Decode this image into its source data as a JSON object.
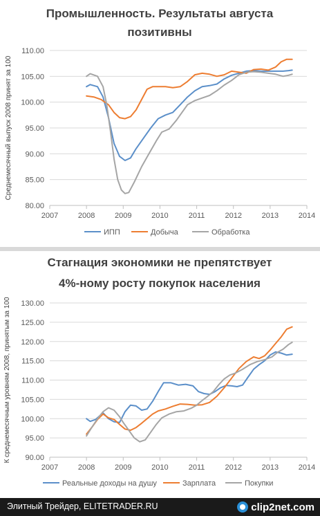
{
  "chart_data": [
    {
      "type": "line",
      "title": "Промышленность. Результаты августа позитивны",
      "title_lines": [
        "Промышленность. Результаты августа",
        "позитивны"
      ],
      "xlabel": "",
      "ylabel": "Среднемесячный выпуск 2008 принят за 100",
      "xlim": [
        2007,
        2014
      ],
      "ylim": [
        80,
        110
      ],
      "x_ticks": [
        "2007",
        "2008",
        "2009",
        "2010",
        "2011",
        "2012",
        "2013",
        "2014"
      ],
      "y_ticks": [
        "80.00",
        "85.00",
        "90.00",
        "95.00",
        "100.00",
        "105.00",
        "110.00"
      ],
      "grid": "horizontal",
      "legend_position": "bottom",
      "series": [
        {
          "name": "ИПП",
          "color": "#5b8fc9",
          "points": [
            [
              2008.0,
              103.0
            ],
            [
              2008.1,
              103.4
            ],
            [
              2008.3,
              103.0
            ],
            [
              2008.45,
              101.0
            ],
            [
              2008.6,
              97.0
            ],
            [
              2008.75,
              92.0
            ],
            [
              2008.9,
              89.5
            ],
            [
              2009.05,
              88.7
            ],
            [
              2009.2,
              89.2
            ],
            [
              2009.35,
              91.0
            ],
            [
              2009.55,
              93.0
            ],
            [
              2009.75,
              95.0
            ],
            [
              2009.95,
              96.8
            ],
            [
              2010.15,
              97.5
            ],
            [
              2010.35,
              98.0
            ],
            [
              2010.55,
              99.5
            ],
            [
              2010.75,
              101.0
            ],
            [
              2010.95,
              102.2
            ],
            [
              2011.15,
              103.0
            ],
            [
              2011.35,
              103.2
            ],
            [
              2011.55,
              103.5
            ],
            [
              2011.75,
              104.5
            ],
            [
              2011.95,
              105.2
            ],
            [
              2012.15,
              105.6
            ],
            [
              2012.35,
              106.0
            ],
            [
              2012.55,
              106.1
            ],
            [
              2012.75,
              106.0
            ],
            [
              2012.95,
              106.0
            ],
            [
              2013.15,
              106.0
            ],
            [
              2013.35,
              106.0
            ],
            [
              2013.5,
              106.1
            ],
            [
              2013.6,
              106.2
            ]
          ]
        },
        {
          "name": "Добыча",
          "color": "#ed7d31",
          "points": [
            [
              2008.0,
              101.2
            ],
            [
              2008.2,
              101.0
            ],
            [
              2008.4,
              100.5
            ],
            [
              2008.6,
              99.5
            ],
            [
              2008.75,
              98.0
            ],
            [
              2008.9,
              97.0
            ],
            [
              2009.05,
              96.8
            ],
            [
              2009.2,
              97.2
            ],
            [
              2009.35,
              98.5
            ],
            [
              2009.5,
              100.5
            ],
            [
              2009.65,
              102.5
            ],
            [
              2009.8,
              103.0
            ],
            [
              2009.95,
              103.0
            ],
            [
              2010.15,
              103.0
            ],
            [
              2010.35,
              102.8
            ],
            [
              2010.55,
              103.0
            ],
            [
              2010.75,
              104.0
            ],
            [
              2010.95,
              105.3
            ],
            [
              2011.15,
              105.6
            ],
            [
              2011.35,
              105.4
            ],
            [
              2011.55,
              105.0
            ],
            [
              2011.75,
              105.3
            ],
            [
              2011.95,
              106.0
            ],
            [
              2012.15,
              105.8
            ],
            [
              2012.35,
              105.6
            ],
            [
              2012.55,
              106.3
            ],
            [
              2012.75,
              106.4
            ],
            [
              2012.95,
              106.2
            ],
            [
              2013.15,
              106.8
            ],
            [
              2013.3,
              107.8
            ],
            [
              2013.45,
              108.3
            ],
            [
              2013.6,
              108.3
            ]
          ]
        },
        {
          "name": "Обработка",
          "color": "#a5a5a5",
          "points": [
            [
              2008.0,
              105.0
            ],
            [
              2008.1,
              105.5
            ],
            [
              2008.3,
              105.0
            ],
            [
              2008.45,
              103.0
            ],
            [
              2008.55,
              99.5
            ],
            [
              2008.65,
              94.5
            ],
            [
              2008.75,
              89.0
            ],
            [
              2008.85,
              85.0
            ],
            [
              2008.95,
              83.0
            ],
            [
              2009.05,
              82.3
            ],
            [
              2009.15,
              82.5
            ],
            [
              2009.3,
              84.5
            ],
            [
              2009.5,
              87.5
            ],
            [
              2009.7,
              90.0
            ],
            [
              2009.9,
              92.5
            ],
            [
              2010.05,
              94.2
            ],
            [
              2010.25,
              94.8
            ],
            [
              2010.45,
              96.5
            ],
            [
              2010.6,
              98.0
            ],
            [
              2010.75,
              99.5
            ],
            [
              2010.95,
              100.3
            ],
            [
              2011.15,
              100.8
            ],
            [
              2011.35,
              101.3
            ],
            [
              2011.55,
              102.2
            ],
            [
              2011.75,
              103.3
            ],
            [
              2011.95,
              104.2
            ],
            [
              2012.15,
              105.3
            ],
            [
              2012.35,
              105.8
            ],
            [
              2012.55,
              105.9
            ],
            [
              2012.75,
              105.8
            ],
            [
              2012.95,
              105.6
            ],
            [
              2013.15,
              105.4
            ],
            [
              2013.35,
              105.0
            ],
            [
              2013.5,
              105.2
            ],
            [
              2013.6,
              105.4
            ]
          ]
        }
      ]
    },
    {
      "type": "line",
      "title": "Стагнация экономики не препятствует 4%-ному росту покупок населения",
      "title_lines": [
        "Стагнация экономики не препятствует",
        "4%-ному росту покупок населения"
      ],
      "xlabel": "",
      "ylabel": "К среднемесячным уровням 2008, принятым за 100",
      "xlim": [
        2007,
        2014
      ],
      "ylim": [
        90,
        130
      ],
      "x_ticks": [
        "2007",
        "2008",
        "2009",
        "2010",
        "2011",
        "2012",
        "2013",
        "2014"
      ],
      "y_ticks": [
        "90.00",
        "95.00",
        "100.00",
        "105.00",
        "110.00",
        "115.00",
        "120.00",
        "125.00",
        "130.00"
      ],
      "grid": "horizontal",
      "legend_position": "bottom",
      "series": [
        {
          "name": "Реальные доходы на душу",
          "color": "#5b8fc9",
          "points": [
            [
              2008.0,
              100.0
            ],
            [
              2008.1,
              99.3
            ],
            [
              2008.25,
              99.8
            ],
            [
              2008.45,
              101.5
            ],
            [
              2008.6,
              100.0
            ],
            [
              2008.75,
              99.2
            ],
            [
              2008.9,
              99.0
            ],
            [
              2009.05,
              101.8
            ],
            [
              2009.2,
              103.5
            ],
            [
              2009.35,
              103.3
            ],
            [
              2009.5,
              102.2
            ],
            [
              2009.65,
              102.5
            ],
            [
              2009.8,
              104.5
            ],
            [
              2009.95,
              107.0
            ],
            [
              2010.1,
              109.3
            ],
            [
              2010.3,
              109.3
            ],
            [
              2010.5,
              108.7
            ],
            [
              2010.7,
              108.9
            ],
            [
              2010.9,
              108.5
            ],
            [
              2011.05,
              107.0
            ],
            [
              2011.2,
              106.5
            ],
            [
              2011.35,
              106.3
            ],
            [
              2011.5,
              107.0
            ],
            [
              2011.65,
              108.0
            ],
            [
              2011.8,
              108.6
            ],
            [
              2011.95,
              108.5
            ],
            [
              2012.1,
              108.3
            ],
            [
              2012.25,
              108.7
            ],
            [
              2012.4,
              110.8
            ],
            [
              2012.55,
              112.8
            ],
            [
              2012.7,
              114.0
            ],
            [
              2012.85,
              115.0
            ],
            [
              2013.0,
              116.5
            ],
            [
              2013.15,
              117.3
            ],
            [
              2013.3,
              117.0
            ],
            [
              2013.45,
              116.5
            ],
            [
              2013.6,
              116.7
            ]
          ]
        },
        {
          "name": "Зарплата",
          "color": "#ed7d31",
          "points": [
            [
              2008.0,
              96.0
            ],
            [
              2008.15,
              97.8
            ],
            [
              2008.3,
              99.8
            ],
            [
              2008.45,
              101.2
            ],
            [
              2008.6,
              100.2
            ],
            [
              2008.75,
              99.8
            ],
            [
              2008.9,
              98.5
            ],
            [
              2009.05,
              97.3
            ],
            [
              2009.2,
              97.0
            ],
            [
              2009.35,
              97.7
            ],
            [
              2009.5,
              98.8
            ],
            [
              2009.65,
              100.0
            ],
            [
              2009.8,
              101.2
            ],
            [
              2009.95,
              102.0
            ],
            [
              2010.15,
              102.5
            ],
            [
              2010.35,
              103.2
            ],
            [
              2010.55,
              103.8
            ],
            [
              2010.75,
              103.7
            ],
            [
              2010.95,
              103.5
            ],
            [
              2011.15,
              103.6
            ],
            [
              2011.35,
              104.2
            ],
            [
              2011.55,
              105.8
            ],
            [
              2011.75,
              108.0
            ],
            [
              2011.95,
              110.5
            ],
            [
              2012.15,
              113.0
            ],
            [
              2012.35,
              114.8
            ],
            [
              2012.55,
              116.0
            ],
            [
              2012.7,
              115.6
            ],
            [
              2012.85,
              116.3
            ],
            [
              2013.0,
              117.8
            ],
            [
              2013.15,
              119.5
            ],
            [
              2013.3,
              121.2
            ],
            [
              2013.45,
              123.2
            ],
            [
              2013.6,
              123.8
            ]
          ]
        },
        {
          "name": "Покупки",
          "color": "#a5a5a5",
          "points": [
            [
              2008.0,
              95.5
            ],
            [
              2008.15,
              97.8
            ],
            [
              2008.3,
              100.0
            ],
            [
              2008.45,
              101.8
            ],
            [
              2008.6,
              102.8
            ],
            [
              2008.75,
              102.2
            ],
            [
              2008.9,
              100.5
            ],
            [
              2009.0,
              99.0
            ],
            [
              2009.15,
              97.0
            ],
            [
              2009.3,
              95.0
            ],
            [
              2009.45,
              94.0
            ],
            [
              2009.6,
              94.5
            ],
            [
              2009.75,
              96.5
            ],
            [
              2009.9,
              98.5
            ],
            [
              2010.05,
              100.2
            ],
            [
              2010.25,
              101.2
            ],
            [
              2010.45,
              101.8
            ],
            [
              2010.65,
              102.0
            ],
            [
              2010.85,
              102.7
            ],
            [
              2011.0,
              103.5
            ],
            [
              2011.15,
              104.7
            ],
            [
              2011.3,
              105.8
            ],
            [
              2011.45,
              107.0
            ],
            [
              2011.6,
              108.8
            ],
            [
              2011.75,
              110.3
            ],
            [
              2011.9,
              111.3
            ],
            [
              2012.05,
              111.8
            ],
            [
              2012.25,
              112.8
            ],
            [
              2012.45,
              114.0
            ],
            [
              2012.65,
              114.8
            ],
            [
              2012.85,
              115.3
            ],
            [
              2013.05,
              116.0
            ],
            [
              2013.2,
              117.2
            ],
            [
              2013.35,
              118.0
            ],
            [
              2013.5,
              119.2
            ],
            [
              2013.6,
              119.8
            ]
          ]
        }
      ]
    }
  ],
  "footer": {
    "caption": "Элитный Трейдер, ELITETRADER.RU",
    "logo": "clip2net.com"
  }
}
